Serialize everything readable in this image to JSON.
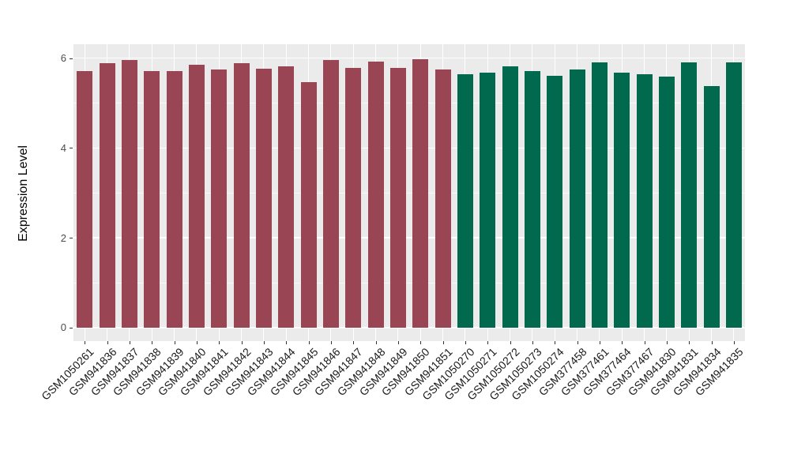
{
  "chart_data": {
    "type": "bar",
    "title": "",
    "xlabel": "",
    "ylabel": "Expression Level",
    "ylim": [
      -0.3,
      6.31
    ],
    "ytick_labels": [
      "0",
      "2",
      "4",
      "6"
    ],
    "ytick_values": [
      0,
      2,
      4,
      6
    ],
    "ytick_minor_values": [
      1,
      3,
      5
    ],
    "grid": "white major and minor horizontal gridlines, vertical gridline at each category",
    "legend_position": "none",
    "categories": [
      "GSM1050261",
      "GSM941836",
      "GSM941837",
      "GSM941838",
      "GSM941839",
      "GSM941840",
      "GSM941841",
      "GSM941842",
      "GSM941843",
      "GSM941844",
      "GSM941845",
      "GSM941846",
      "GSM941847",
      "GSM941848",
      "GSM941849",
      "GSM941850",
      "GSM941851",
      "GSM1050270",
      "GSM1050271",
      "GSM1050272",
      "GSM1050273",
      "GSM1050274",
      "GSM377458",
      "GSM377461",
      "GSM377464",
      "GSM377467",
      "GSM941830",
      "GSM941831",
      "GSM941834",
      "GSM941835"
    ],
    "values": [
      5.71,
      5.89,
      5.95,
      5.71,
      5.72,
      5.85,
      5.75,
      5.89,
      5.77,
      5.81,
      5.46,
      5.95,
      5.78,
      5.92,
      5.79,
      5.98,
      5.75,
      5.65,
      5.68,
      5.81,
      5.71,
      5.61,
      5.75,
      5.9,
      5.68,
      5.65,
      5.59,
      5.9,
      5.37,
      5.9
    ],
    "bar_group_index": [
      0,
      0,
      0,
      0,
      0,
      0,
      0,
      0,
      0,
      0,
      0,
      0,
      0,
      0,
      0,
      0,
      0,
      1,
      1,
      1,
      1,
      1,
      1,
      1,
      1,
      1,
      1,
      1,
      1,
      1
    ],
    "group_colors": [
      "#9A4553",
      "#016A4E"
    ]
  },
  "style": {
    "panel_background": "#EBEBEB",
    "grid_color": "#FFFFFF",
    "tick_mark_color": "#333333",
    "y_tick_text_color": "#4D4D4D",
    "x_tick_text_color": "#1A1A1A",
    "axis_title_color": "#000000",
    "figure_background": "#FFFFFF"
  }
}
